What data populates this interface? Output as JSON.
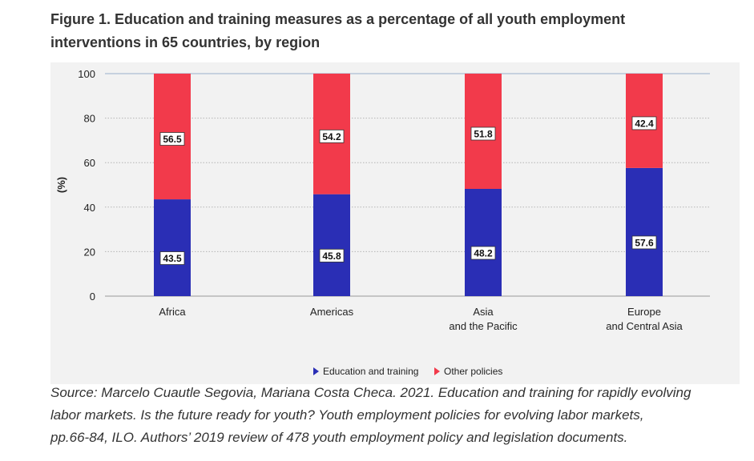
{
  "title_line1": "Figure 1. Education and training measures as a percentage of all youth employment",
  "title_line2": "interventions in 65 countries, by region",
  "source_line1": "Source: Marcelo Cuautle Segovia, Mariana Costa Checa. 2021. Education and training for rapidly evolving",
  "source_line2": "labor markets. Is the future ready for youth? Youth employment policies for evolving labor markets,",
  "source_line3": "pp.66-84, ILO. Authors’ 2019 review of 478 youth employment policy and legislation documents.",
  "chart_data": {
    "type": "bar",
    "stacked": true,
    "categories": [
      [
        "Africa"
      ],
      [
        "Americas"
      ],
      [
        "Asia",
        "and the Pacific"
      ],
      [
        "Europe",
        "and Central Asia"
      ]
    ],
    "series": [
      {
        "name": "Education and training",
        "color": "#2a2eb5",
        "values": [
          43.5,
          45.8,
          48.2,
          57.6
        ]
      },
      {
        "name": "Other policies",
        "color": "#f23a4b",
        "values": [
          56.5,
          54.2,
          51.8,
          42.4
        ]
      }
    ],
    "ylabel": "(%)",
    "ylim": [
      0,
      100
    ],
    "yticks": [
      0,
      20,
      40,
      60,
      80,
      100
    ],
    "grid": "horizontal dotted",
    "legend": "bottom-center"
  }
}
